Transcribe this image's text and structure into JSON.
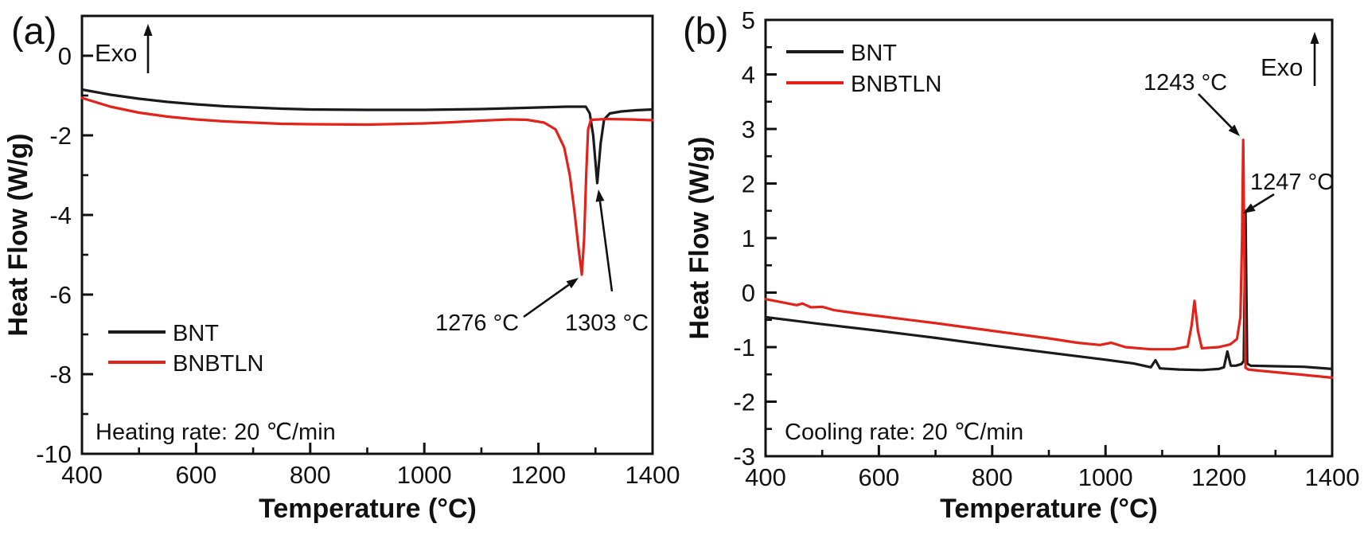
{
  "figure": {
    "background": "#ffffff",
    "axis_color": "#111111",
    "accent_red": "#e2231a",
    "accent_black": "#1a1a1a"
  },
  "chart_data": [
    {
      "type": "line",
      "panel_label": "(a)",
      "exo_label": "Exo",
      "xlabel": "Temperature (°C)",
      "ylabel": "Heat Flow (W/g)",
      "note": "Heating rate: 20 ℃/min",
      "xlim": [
        400,
        1400
      ],
      "ylim": [
        -10,
        1
      ],
      "xticks": [
        400,
        600,
        800,
        1000,
        1200,
        1400
      ],
      "yticks": [
        0,
        -2,
        -4,
        -6,
        -8,
        -10
      ],
      "x_minor_step": 100,
      "y_minor_step": 1,
      "grid": false,
      "legend_position": "left-middle",
      "series": [
        {
          "name": "BNT",
          "color": "#1a1a1a",
          "x": [
            400,
            450,
            500,
            550,
            600,
            650,
            700,
            750,
            800,
            900,
            1000,
            1100,
            1150,
            1200,
            1250,
            1283,
            1290,
            1296,
            1303,
            1309,
            1315,
            1325,
            1345,
            1370,
            1400
          ],
          "y": [
            -0.85,
            -0.98,
            -1.08,
            -1.16,
            -1.22,
            -1.27,
            -1.3,
            -1.33,
            -1.35,
            -1.36,
            -1.36,
            -1.34,
            -1.32,
            -1.3,
            -1.28,
            -1.28,
            -1.45,
            -2.0,
            -3.2,
            -2.2,
            -1.6,
            -1.45,
            -1.4,
            -1.37,
            -1.35
          ]
        },
        {
          "name": "BNBTLN",
          "color": "#e2231a",
          "x": [
            400,
            450,
            500,
            550,
            600,
            650,
            700,
            750,
            800,
            900,
            1000,
            1050,
            1100,
            1150,
            1180,
            1210,
            1230,
            1245,
            1255,
            1263,
            1270,
            1276,
            1280,
            1284,
            1287,
            1292,
            1320,
            1360,
            1400
          ],
          "y": [
            -1.06,
            -1.28,
            -1.43,
            -1.53,
            -1.6,
            -1.65,
            -1.68,
            -1.71,
            -1.72,
            -1.73,
            -1.7,
            -1.67,
            -1.63,
            -1.6,
            -1.61,
            -1.68,
            -1.85,
            -2.3,
            -3.0,
            -3.9,
            -4.8,
            -5.5,
            -4.6,
            -2.9,
            -1.85,
            -1.61,
            -1.59,
            -1.6,
            -1.62
          ]
        }
      ],
      "annotations": [
        {
          "text": "1276 °C",
          "color": "#e2231a",
          "target": {
            "x": 1276,
            "y": -5.5
          }
        },
        {
          "text": "1303 °C",
          "color": "#1a1a1a",
          "target": {
            "x": 1303,
            "y": -3.2
          }
        }
      ]
    },
    {
      "type": "line",
      "panel_label": "(b)",
      "exo_label": "Exo",
      "xlabel": "Temperature (°C)",
      "ylabel": "Heat Flow (W/g)",
      "note": "Cooling rate: 20 ℃/min",
      "xlim": [
        400,
        1400
      ],
      "ylim": [
        -3,
        5
      ],
      "xticks": [
        400,
        600,
        800,
        1000,
        1200,
        1400
      ],
      "yticks": [
        5,
        4,
        3,
        2,
        1,
        0,
        -1,
        -2,
        -3
      ],
      "x_minor_step": 100,
      "y_minor_step": 0.5,
      "grid": false,
      "legend_position": "top-left",
      "series": [
        {
          "name": "BNT",
          "color": "#1a1a1a",
          "x": [
            400,
            500,
            600,
            700,
            800,
            900,
            1000,
            1050,
            1080,
            1088,
            1096,
            1130,
            1170,
            1200,
            1209,
            1215,
            1221,
            1230,
            1240,
            1244,
            1247,
            1250,
            1256,
            1300,
            1350,
            1400
          ],
          "y": [
            -0.45,
            -0.58,
            -0.7,
            -0.83,
            -0.97,
            -1.1,
            -1.23,
            -1.3,
            -1.37,
            -1.24,
            -1.39,
            -1.41,
            -1.42,
            -1.4,
            -1.37,
            -1.08,
            -1.34,
            -1.34,
            -1.31,
            -1.25,
            1.5,
            -1.3,
            -1.34,
            -1.35,
            -1.36,
            -1.4
          ]
        },
        {
          "name": "BNBTLN",
          "color": "#e2231a",
          "x": [
            400,
            430,
            455,
            465,
            480,
            500,
            520,
            560,
            600,
            700,
            800,
            900,
            950,
            990,
            1010,
            1035,
            1080,
            1120,
            1145,
            1152,
            1157,
            1163,
            1170,
            1200,
            1220,
            1232,
            1238,
            1241,
            1243,
            1245,
            1247,
            1252,
            1270,
            1300,
            1350,
            1400
          ],
          "y": [
            -0.12,
            -0.18,
            -0.23,
            -0.2,
            -0.27,
            -0.26,
            -0.32,
            -0.38,
            -0.43,
            -0.56,
            -0.7,
            -0.84,
            -0.92,
            -0.96,
            -0.92,
            -1.0,
            -1.04,
            -1.04,
            -0.99,
            -0.6,
            -0.15,
            -0.7,
            -1.02,
            -1.0,
            -0.95,
            -0.85,
            -0.45,
            1.0,
            2.8,
            0.8,
            -1.38,
            -1.41,
            -1.43,
            -1.46,
            -1.51,
            -1.56
          ]
        }
      ],
      "annotations": [
        {
          "text": "1243 °C",
          "color": "#e2231a",
          "target": {
            "x": 1243,
            "y": 2.8
          }
        },
        {
          "text": "1247 °C",
          "color": "#1a1a1a",
          "target": {
            "x": 1247,
            "y": 1.45
          }
        }
      ]
    }
  ]
}
